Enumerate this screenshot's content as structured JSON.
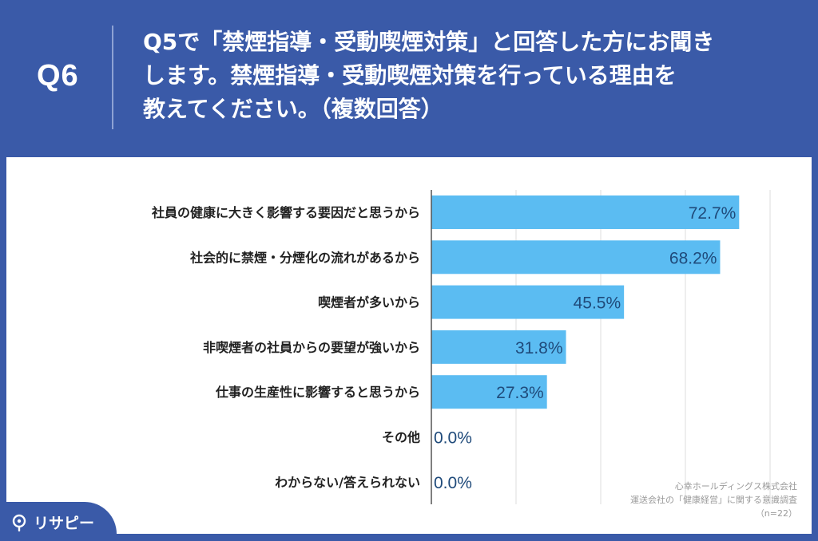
{
  "question": {
    "number": "Q6",
    "lines": [
      "Q5で「禁煙指導・受動喫煙対策」と回答した方にお聞き",
      "します。禁煙指導・受動喫煙対策を行っている理由を",
      "教えてください。（複数回答）"
    ]
  },
  "chart_data": {
    "type": "bar",
    "orientation": "horizontal",
    "categories": [
      "社員の健康に大きく影響する要因だと思うから",
      "社会的に禁煙・分煙化の流れがあるから",
      "喫煙者が多いから",
      "非喫煙者の社員からの要望が強いから",
      "仕事の生産性に影響すると思うから",
      "その他",
      "わからない/答えられない"
    ],
    "values": [
      72.7,
      68.2,
      45.5,
      31.8,
      27.3,
      0.0,
      0.0
    ],
    "value_labels": [
      "72.7%",
      "68.2%",
      "45.5%",
      "31.8%",
      "27.3%",
      "0.0%",
      "0.0%"
    ],
    "xlim": [
      0,
      80
    ],
    "grid": true,
    "bar_color": "#5bbcf2",
    "label_color": "#1f4a7a"
  },
  "source": {
    "company": "心幸ホールディングス株式会社",
    "survey": "運送会社の「健康経営」に関する意識調査",
    "sample": "（n=22）"
  },
  "logo": {
    "text": "リサピー",
    "icon": "search-pin-icon"
  }
}
